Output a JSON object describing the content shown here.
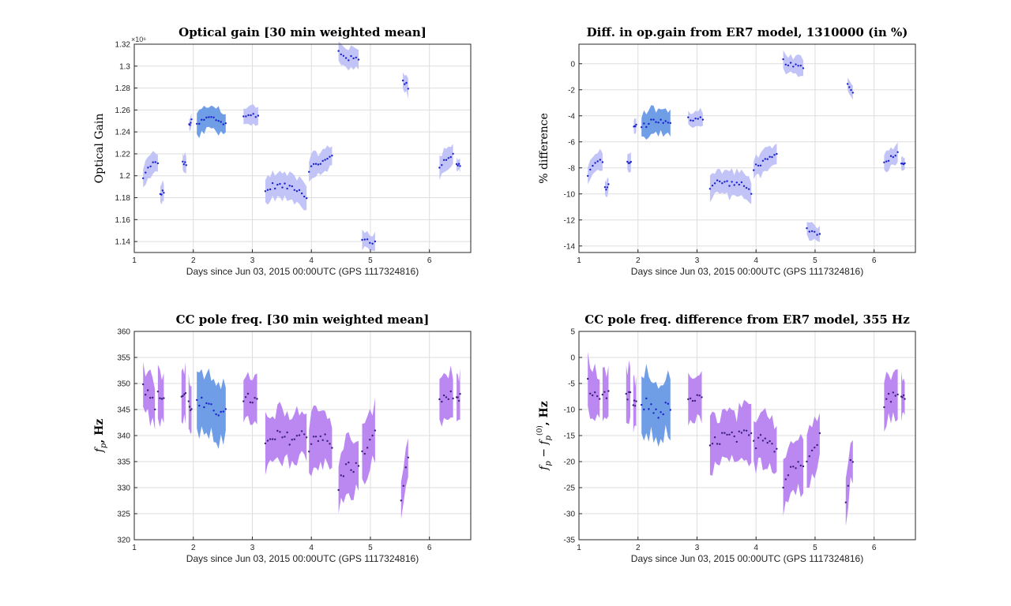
{
  "colors": {
    "band_blue_light": "#c2c4f7",
    "band_blue_dark": "#6f9de6",
    "band_purple": "#bb88f2",
    "points_blue": "#1a22cc",
    "points_purple": "#3b1f7a",
    "grid": "#dddddd",
    "axis": "#262626"
  },
  "chart_data": [
    {
      "type": "scatter",
      "title": "Optical gain [30 min weighted mean]",
      "xlabel": "Days since Jun 03, 2015 00:00UTC (GPS 1117324816)",
      "ylabel": "Optical Gain",
      "ylabel_parts": [],
      "exponent_label": "×10⁶",
      "xlim": [
        1,
        6.7
      ],
      "ylim": [
        1.13,
        1.32
      ],
      "xticks": [
        1,
        2,
        3,
        4,
        5,
        6
      ],
      "xtick_labels": [
        "1",
        "2",
        "3",
        "4",
        "5",
        "6"
      ],
      "yticks": [
        1.14,
        1.16,
        1.18,
        1.2,
        1.22,
        1.24,
        1.26,
        1.28,
        1.3,
        1.32
      ],
      "ytick_labels": [
        "1.14",
        "1.16",
        "1.18",
        "1.2",
        "1.22",
        "1.24",
        "1.26",
        "1.28",
        "1.3",
        "1.32"
      ],
      "grid": true,
      "segments": [
        {
          "x0": 1.15,
          "x1": 1.4,
          "base": [
            1.197,
            1.205,
            1.21,
            1.212,
            1.21
          ],
          "halfwidth": 0.009,
          "color": "light"
        },
        {
          "x0": 1.44,
          "x1": 1.5,
          "base": [
            1.183,
            1.186
          ],
          "halfwidth": 0.008,
          "color": "light"
        },
        {
          "x0": 1.82,
          "x1": 1.88,
          "base": [
            1.212,
            1.21
          ],
          "halfwidth": 0.008,
          "color": "light"
        },
        {
          "x0": 1.93,
          "x1": 1.97,
          "base": [
            1.246,
            1.25
          ],
          "halfwidth": 0.006,
          "color": "light"
        },
        {
          "x0": 2.06,
          "x1": 2.55,
          "base": [
            1.246,
            1.25,
            1.253,
            1.252,
            1.25,
            1.247
          ],
          "halfwidth": 0.011,
          "color": "dark"
        },
        {
          "x0": 2.85,
          "x1": 3.1,
          "base": [
            1.255,
            1.254,
            1.256,
            1.255
          ],
          "halfwidth": 0.008,
          "color": "light"
        },
        {
          "x0": 3.22,
          "x1": 3.92,
          "base": [
            1.185,
            1.191,
            1.191,
            1.19,
            1.19,
            1.187,
            1.18
          ],
          "halfwidth": 0.011,
          "color": "light"
        },
        {
          "x0": 3.96,
          "x1": 4.35,
          "base": [
            1.206,
            1.21,
            1.212,
            1.214,
            1.218
          ],
          "halfwidth": 0.01,
          "color": "light"
        },
        {
          "x0": 4.46,
          "x1": 4.8,
          "base": [
            1.313,
            1.31,
            1.307,
            1.307,
            1.306
          ],
          "halfwidth": 0.009,
          "color": "light"
        },
        {
          "x0": 4.86,
          "x1": 5.08,
          "base": [
            1.143,
            1.142,
            1.14,
            1.139
          ],
          "halfwidth": 0.008,
          "color": "light"
        },
        {
          "x0": 5.55,
          "x1": 5.64,
          "base": [
            1.286,
            1.284,
            1.281
          ],
          "halfwidth": 0.008,
          "color": "light"
        },
        {
          "x0": 6.17,
          "x1": 6.4,
          "base": [
            1.208,
            1.214,
            1.217,
            1.219
          ],
          "halfwidth": 0.009,
          "color": "light"
        },
        {
          "x0": 6.46,
          "x1": 6.52,
          "base": [
            1.21,
            1.21
          ],
          "halfwidth": 0.006,
          "color": "light"
        }
      ]
    },
    {
      "type": "scatter",
      "title": "Diff. in op.gain from ER7 model, 1310000 (in %)",
      "xlabel": "Days since Jun 03, 2015 00:00UTC (GPS 1117324816)",
      "ylabel": "% difference",
      "ylabel_parts": [],
      "exponent_label": "",
      "xlim": [
        1,
        6.7
      ],
      "ylim": [
        -14.5,
        1.5
      ],
      "xticks": [
        1,
        2,
        3,
        4,
        5,
        6
      ],
      "xtick_labels": [
        "1",
        "2",
        "3",
        "4",
        "5",
        "6"
      ],
      "yticks": [
        -14,
        -12,
        -10,
        -8,
        -6,
        -4,
        -2,
        0
      ],
      "ytick_labels": [
        "-14",
        "-12",
        "-10",
        "-8",
        "-6",
        "-4",
        "-2",
        "0"
      ],
      "grid": true,
      "segments": [
        {
          "x0": 1.15,
          "x1": 1.4,
          "base": [
            -8.6,
            -8.0,
            -7.6,
            -7.5,
            -7.6
          ],
          "halfwidth": 0.7,
          "color": "light"
        },
        {
          "x0": 1.44,
          "x1": 1.5,
          "base": [
            -9.6,
            -9.4
          ],
          "halfwidth": 0.6,
          "color": "light"
        },
        {
          "x0": 1.82,
          "x1": 1.88,
          "base": [
            -7.5,
            -7.6
          ],
          "halfwidth": 0.6,
          "color": "light"
        },
        {
          "x0": 1.93,
          "x1": 1.97,
          "base": [
            -4.9,
            -4.7
          ],
          "halfwidth": 0.5,
          "color": "light"
        },
        {
          "x0": 2.06,
          "x1": 2.55,
          "base": [
            -4.9,
            -4.6,
            -4.3,
            -4.4,
            -4.5,
            -4.7
          ],
          "halfwidth": 0.9,
          "color": "dark"
        },
        {
          "x0": 2.85,
          "x1": 3.1,
          "base": [
            -4.2,
            -4.3,
            -4.1,
            -4.2
          ],
          "halfwidth": 0.6,
          "color": "light"
        },
        {
          "x0": 3.22,
          "x1": 3.92,
          "base": [
            -9.5,
            -9.1,
            -9.1,
            -9.2,
            -9.2,
            -9.4,
            -9.9
          ],
          "halfwidth": 0.9,
          "color": "light"
        },
        {
          "x0": 3.96,
          "x1": 4.35,
          "base": [
            -8.0,
            -7.7,
            -7.5,
            -7.3,
            -7.0
          ],
          "halfwidth": 0.8,
          "color": "light"
        },
        {
          "x0": 4.46,
          "x1": 4.8,
          "base": [
            0.2,
            0.0,
            -0.2,
            -0.2,
            -0.3
          ],
          "halfwidth": 0.7,
          "color": "light"
        },
        {
          "x0": 4.86,
          "x1": 5.08,
          "base": [
            -12.7,
            -12.8,
            -13.0,
            -13.1
          ],
          "halfwidth": 0.6,
          "color": "light"
        },
        {
          "x0": 5.55,
          "x1": 5.64,
          "base": [
            -1.6,
            -1.8,
            -2.1
          ],
          "halfwidth": 0.6,
          "color": "light"
        },
        {
          "x0": 6.17,
          "x1": 6.4,
          "base": [
            -7.7,
            -7.3,
            -7.0,
            -6.9
          ],
          "halfwidth": 0.7,
          "color": "light"
        },
        {
          "x0": 6.46,
          "x1": 6.52,
          "base": [
            -7.6,
            -7.6
          ],
          "halfwidth": 0.5,
          "color": "light"
        }
      ]
    },
    {
      "type": "scatter",
      "title": "CC pole freq. [30 min weighted mean]",
      "xlabel": "Days since Jun 03, 2015 00:00UTC (GPS 1117324816)",
      "ylabel": "",
      "ylabel_parts": [
        "f",
        "p",
        ", Hz"
      ],
      "exponent_label": "",
      "xlim": [
        1,
        6.7
      ],
      "ylim": [
        320,
        360
      ],
      "xticks": [
        1,
        2,
        3,
        4,
        5,
        6
      ],
      "xtick_labels": [
        "1",
        "2",
        "3",
        "4",
        "5",
        "6"
      ],
      "yticks": [
        320,
        325,
        330,
        335,
        340,
        345,
        350,
        355,
        360
      ],
      "ytick_labels": [
        "320",
        "325",
        "330",
        "335",
        "340",
        "345",
        "350",
        "355",
        "360"
      ],
      "grid": true,
      "segments": [
        {
          "x0": 1.15,
          "x1": 1.35,
          "base": [
            350,
            348,
            347,
            346
          ],
          "halfwidth": 4.5,
          "color": "purple"
        },
        {
          "x0": 1.4,
          "x1": 1.5,
          "base": [
            347.5,
            347.5
          ],
          "halfwidth": 4.5,
          "color": "purple"
        },
        {
          "x0": 1.8,
          "x1": 1.87,
          "base": [
            347.5,
            348
          ],
          "halfwidth": 5,
          "color": "purple"
        },
        {
          "x0": 1.92,
          "x1": 1.97,
          "base": [
            346,
            345.5
          ],
          "halfwidth": 4.5,
          "color": "purple"
        },
        {
          "x0": 2.06,
          "x1": 2.55,
          "base": [
            346,
            346,
            345,
            344.5,
            345,
            346
          ],
          "halfwidth": 5.5,
          "color": "dark"
        },
        {
          "x0": 2.85,
          "x1": 3.08,
          "base": [
            346,
            347,
            347,
            346.5
          ],
          "halfwidth": 4.5,
          "color": "purple"
        },
        {
          "x0": 3.22,
          "x1": 3.92,
          "base": [
            338,
            339,
            340,
            339.5,
            339.5,
            340,
            340
          ],
          "halfwidth": 5,
          "color": "purple"
        },
        {
          "x0": 3.96,
          "x1": 4.35,
          "base": [
            338,
            340,
            340,
            339,
            337.5
          ],
          "halfwidth": 5,
          "color": "purple"
        },
        {
          "x0": 4.46,
          "x1": 4.8,
          "base": [
            330,
            333,
            334.5,
            334,
            334
          ],
          "halfwidth": 5,
          "color": "purple"
        },
        {
          "x0": 4.86,
          "x1": 5.08,
          "base": [
            336,
            338,
            339,
            340
          ],
          "halfwidth": 5,
          "color": "purple"
        },
        {
          "x0": 5.52,
          "x1": 5.64,
          "base": [
            327,
            331,
            334.5,
            335
          ],
          "halfwidth": 4,
          "color": "purple"
        },
        {
          "x0": 6.17,
          "x1": 6.4,
          "base": [
            346.5,
            347.5,
            347.5,
            347.5
          ],
          "halfwidth": 4.5,
          "color": "purple"
        },
        {
          "x0": 6.46,
          "x1": 6.52,
          "base": [
            347,
            348
          ],
          "halfwidth": 4,
          "color": "purple"
        }
      ]
    },
    {
      "type": "scatter",
      "title": "CC pole freq. difference from ER7 model, 355 Hz",
      "xlabel": "Days since Jun 03, 2015 00:00UTC (GPS 1117324816)",
      "ylabel": "",
      "ylabel_parts": [
        "f",
        "p",
        " − ",
        "f",
        "p",
        "(0)",
        ", Hz"
      ],
      "exponent_label": "",
      "xlim": [
        1,
        6.7
      ],
      "ylim": [
        -35,
        5
      ],
      "xticks": [
        1,
        2,
        3,
        4,
        5,
        6
      ],
      "xtick_labels": [
        "1",
        "2",
        "3",
        "4",
        "5",
        "6"
      ],
      "yticks": [
        -35,
        -30,
        -25,
        -20,
        -15,
        -10,
        -5,
        0,
        5
      ],
      "ytick_labels": [
        "-35",
        "-30",
        "-25",
        "-20",
        "-15",
        "-10",
        "-5",
        "0",
        "5"
      ],
      "grid": true,
      "segments": [
        {
          "x0": 1.15,
          "x1": 1.35,
          "base": [
            -5,
            -7,
            -8,
            -9
          ],
          "halfwidth": 4.5,
          "color": "purple"
        },
        {
          "x0": 1.4,
          "x1": 1.5,
          "base": [
            -7.5,
            -7.5
          ],
          "halfwidth": 4.5,
          "color": "purple"
        },
        {
          "x0": 1.8,
          "x1": 1.87,
          "base": [
            -7.5,
            -7
          ],
          "halfwidth": 5,
          "color": "purple"
        },
        {
          "x0": 1.92,
          "x1": 1.97,
          "base": [
            -9,
            -9.5
          ],
          "halfwidth": 4.5,
          "color": "purple"
        },
        {
          "x0": 2.06,
          "x1": 2.55,
          "base": [
            -9,
            -9,
            -10,
            -10.5,
            -10,
            -9
          ],
          "halfwidth": 5.5,
          "color": "dark"
        },
        {
          "x0": 2.85,
          "x1": 3.08,
          "base": [
            -9,
            -8,
            -8,
            -8.5
          ],
          "halfwidth": 4.5,
          "color": "purple"
        },
        {
          "x0": 3.22,
          "x1": 3.92,
          "base": [
            -17,
            -16,
            -15,
            -15.5,
            -15.5,
            -15,
            -15
          ],
          "halfwidth": 5,
          "color": "purple"
        },
        {
          "x0": 3.96,
          "x1": 4.35,
          "base": [
            -17,
            -15,
            -15,
            -16,
            -17.5
          ],
          "halfwidth": 5,
          "color": "purple"
        },
        {
          "x0": 4.46,
          "x1": 4.8,
          "base": [
            -25,
            -22,
            -20.5,
            -21,
            -21
          ],
          "halfwidth": 5,
          "color": "purple"
        },
        {
          "x0": 4.86,
          "x1": 5.08,
          "base": [
            -19,
            -17,
            -16,
            -15
          ],
          "halfwidth": 5,
          "color": "purple"
        },
        {
          "x0": 5.52,
          "x1": 5.64,
          "base": [
            -28,
            -24,
            -20.5,
            -20
          ],
          "halfwidth": 4,
          "color": "purple"
        },
        {
          "x0": 6.17,
          "x1": 6.4,
          "base": [
            -8.5,
            -7.5,
            -7.5,
            -7.5
          ],
          "halfwidth": 4.5,
          "color": "purple"
        },
        {
          "x0": 6.46,
          "x1": 6.52,
          "base": [
            -8,
            -7
          ],
          "halfwidth": 4,
          "color": "purple"
        }
      ]
    }
  ]
}
